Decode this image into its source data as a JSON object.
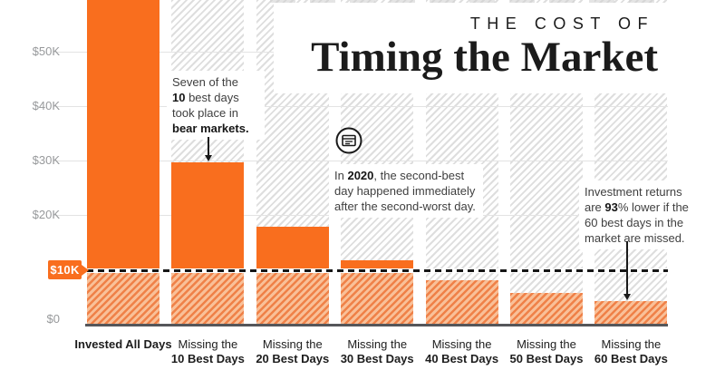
{
  "title": {
    "kicker": "THE COST OF",
    "main": "Timing the Market"
  },
  "y_axis": {
    "labels": [
      "$50K",
      "$40K",
      "$30K",
      "$20K",
      "$0"
    ],
    "badge": "$10K"
  },
  "x_axis": {
    "labels": [
      {
        "line1": "Invested All Days",
        "line1_bold": true
      },
      {
        "line1": "Missing the",
        "line2": "10 Best Days"
      },
      {
        "line1": "Missing the",
        "line2": "20 Best Days"
      },
      {
        "line1": "Missing the",
        "line2": "30 Best Days"
      },
      {
        "line1": "Missing the",
        "line2": "40 Best Days"
      },
      {
        "line1": "Missing the",
        "line2": "50 Best Days"
      },
      {
        "line1": "Missing the",
        "line2": "60 Best Days"
      }
    ]
  },
  "chart_data": {
    "type": "bar",
    "title": "The Cost of Timing the Market",
    "categories": [
      "Invested All Days",
      "Missing the 10 Best Days",
      "Missing the 20 Best Days",
      "Missing the 30 Best Days",
      "Missing the 40 Best Days",
      "Missing the 50 Best Days",
      "Missing the 60 Best Days"
    ],
    "values": [
      65000,
      29700,
      17800,
      11700,
      8000,
      5700,
      4200
    ],
    "ytick_labels": [
      "$0",
      "$10K",
      "$20K",
      "$30K",
      "$40K",
      "$50K"
    ],
    "ylim": [
      0,
      59500
    ],
    "grid": true,
    "reference_line": {
      "value": 10000,
      "label": "$10K",
      "style": "dashed"
    },
    "bar_color": "#f96e1e",
    "below_reference_style": "orange diagonal hatch",
    "background_columns": "full-height gray diagonal hatch behind every bar",
    "annotations": [
      "Seven of the 10 best days took place in bear markets.",
      "In 2020, the second-best day happened immediately after the second-worst day.",
      "Investment returns are 93% lower if the 60 best days in the market are missed."
    ]
  },
  "ann_bear": {
    "l1": "Seven of the",
    "l2b": "10",
    "l2r": " best days",
    "l3": "took place in",
    "l4b": "bear markets."
  },
  "ann_2020": {
    "l1pre": "In ",
    "l1b": "2020",
    "l1r": ", the second-best day happened immediately after the second-worst day."
  },
  "ann_returns": {
    "l1": "Investment returns",
    "l2pre": "are ",
    "l2b": "93",
    "l2mid": "% lower if the",
    "l3": "60 best days in the",
    "l4": "market are missed."
  },
  "colors": {
    "bar_orange": "#f96e1e",
    "hatch_orange_stripe": "#ef8148",
    "hatch_orange_bg": "#f9c098",
    "hatch_gray_stripe": "#dedede",
    "axis": "#55565a",
    "gridline": "#e3e3e3",
    "ylabel_gray": "#97999b",
    "text_dark": "#1b1b1b"
  }
}
